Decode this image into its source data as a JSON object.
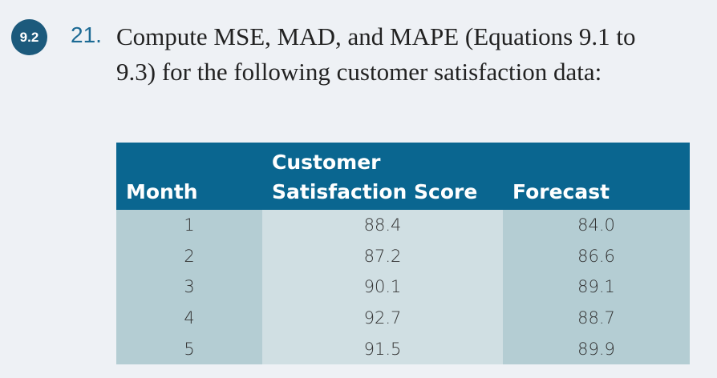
{
  "section_badge": "9.2",
  "problem": {
    "number": "21.",
    "text": "Compute MSE, MAD, and MAPE (Equations 9.1 to 9.3) for the following customer satisfaction data:"
  },
  "table": {
    "headers": [
      "Month",
      "Customer Satisfaction Score",
      "Forecast"
    ],
    "rows": [
      [
        "1",
        "88.4",
        "84.0"
      ],
      [
        "2",
        "87.2",
        "86.6"
      ],
      [
        "3",
        "90.1",
        "89.1"
      ],
      [
        "4",
        "92.7",
        "88.7"
      ],
      [
        "5",
        "91.5",
        "89.9"
      ]
    ]
  }
}
